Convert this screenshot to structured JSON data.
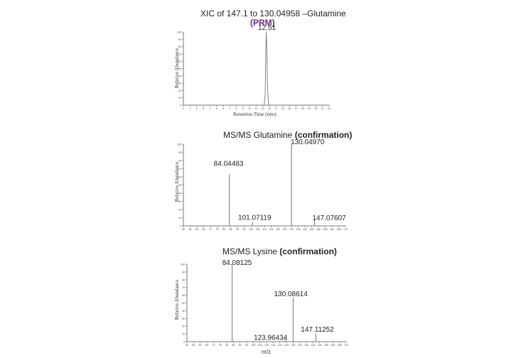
{
  "chart_data": [
    {
      "type": "line",
      "title": "XIC  of 147.1 to 130.04958 –Glutamine",
      "subtitle": "(PRM)",
      "xlabel": "Retention Time (min)",
      "ylabel": "Relative Abundance",
      "xlim": [
        0,
        22
      ],
      "ylim": [
        0,
        100
      ],
      "xticks": [
        "0",
        "1",
        "2",
        "3",
        "4",
        "5",
        "6",
        "7",
        "8",
        "9",
        "10",
        "11",
        "12",
        "13",
        "14",
        "15",
        "16",
        "17",
        "18",
        "19",
        "20",
        "21",
        "22"
      ],
      "yticks": [
        "0",
        "10",
        "20",
        "30",
        "40",
        "50",
        "60",
        "70",
        "80",
        "90",
        "100"
      ],
      "peak": {
        "x": 12.51,
        "y": 100,
        "label": "12.51"
      },
      "series": [
        {
          "x": [
            0,
            12.2,
            12.35,
            12.45,
            12.51,
            12.6,
            12.7,
            12.85,
            22
          ],
          "y": [
            0,
            0,
            15,
            80,
            100,
            78,
            28,
            0,
            0
          ]
        }
      ]
    },
    {
      "type": "bar",
      "title": "MS/MS Glutamine",
      "title_bold": "(confirmation)",
      "xlabel": "",
      "ylabel": "Relative Abundance",
      "xlim": [
        50,
        170
      ],
      "ylim": [
        0,
        100
      ],
      "xticks": [
        "50",
        "55",
        "60",
        "65",
        "70",
        "75",
        "80",
        "85",
        "90",
        "95",
        "100",
        "105",
        "110",
        "115",
        "120",
        "125",
        "130",
        "135",
        "140",
        "145",
        "150",
        "155",
        "160",
        "165",
        "170"
      ],
      "yticks": [
        "0",
        "10",
        "20",
        "30",
        "40",
        "50",
        "60",
        "70",
        "80",
        "90",
        "100"
      ],
      "peaks": [
        {
          "mz": 84.04483,
          "intensity": 63,
          "label": "84.04483"
        },
        {
          "mz": 101.07119,
          "intensity": 5,
          "label": "101.07119"
        },
        {
          "mz": 130.0497,
          "intensity": 100,
          "label": "130.04970"
        },
        {
          "mz": 147.07607,
          "intensity": 7,
          "label": "147.07607"
        }
      ]
    },
    {
      "type": "bar",
      "title": "MS/MS Lysine",
      "title_bold": "(confirmation)",
      "xlabel": "m/z",
      "ylabel": "Relative Abundance",
      "xlim": [
        50,
        170
      ],
      "ylim": [
        0,
        100
      ],
      "xticks": [
        "50",
        "55",
        "60",
        "65",
        "70",
        "75",
        "80",
        "85",
        "90",
        "95",
        "100",
        "105",
        "110",
        "115",
        "120",
        "125",
        "130",
        "135",
        "140",
        "145",
        "150",
        "155",
        "160",
        "165",
        "170"
      ],
      "yticks": [
        "0",
        "10",
        "20",
        "30",
        "40",
        "50",
        "60",
        "70",
        "80",
        "90",
        "100"
      ],
      "peaks": [
        {
          "mz": 84.08125,
          "intensity": 100,
          "label": "84.08125"
        },
        {
          "mz": 123.96434,
          "intensity": 3,
          "label": "123.96434"
        },
        {
          "mz": 130.08614,
          "intensity": 57,
          "label": "130.08614"
        },
        {
          "mz": 147.11252,
          "intensity": 11,
          "label": "147.11252"
        }
      ]
    }
  ]
}
